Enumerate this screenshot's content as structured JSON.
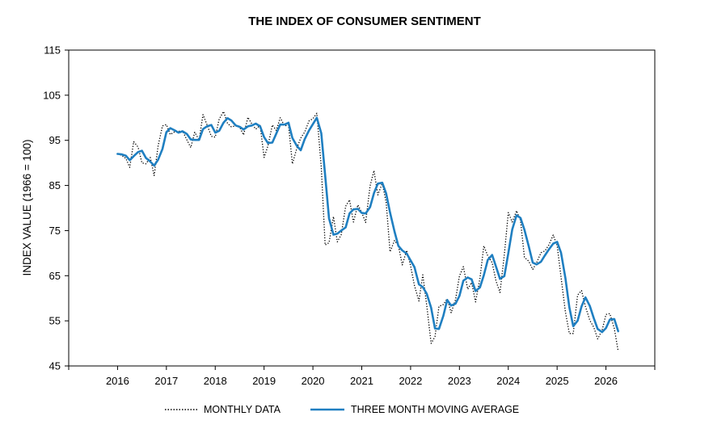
{
  "chart_data": {
    "type": "line",
    "title": "THE INDEX OF CONSUMER SENTIMENT",
    "ylabel": "INDEX VALUE (1966 = 100)",
    "xlabel": "",
    "ylim": [
      45,
      115
    ],
    "xlim": [
      2015.0,
      2027.0
    ],
    "y_ticks": [
      45,
      55,
      65,
      75,
      85,
      95,
      105,
      115
    ],
    "x_ticks": [
      2016,
      2017,
      2018,
      2019,
      2020,
      2021,
      2022,
      2023,
      2024,
      2025,
      2026
    ],
    "x_tick_labels": [
      "2016",
      "2017",
      "2018",
      "2019",
      "2020",
      "2021",
      "2022",
      "2023",
      "2024",
      "2025",
      "2026"
    ],
    "grid": false,
    "legend": "bottom",
    "series": [
      {
        "name": "MONTHLY DATA",
        "style": "dotted",
        "color": "#000000",
        "x": [
          2016.0,
          2016.08,
          2016.17,
          2016.25,
          2016.33,
          2016.42,
          2016.5,
          2016.58,
          2016.67,
          2016.75,
          2016.83,
          2016.92,
          2017.0,
          2017.08,
          2017.17,
          2017.25,
          2017.33,
          2017.42,
          2017.5,
          2017.58,
          2017.67,
          2017.75,
          2017.83,
          2017.92,
          2018.0,
          2018.08,
          2018.17,
          2018.25,
          2018.33,
          2018.42,
          2018.5,
          2018.58,
          2018.67,
          2018.75,
          2018.83,
          2018.92,
          2019.0,
          2019.08,
          2019.17,
          2019.25,
          2019.33,
          2019.42,
          2019.5,
          2019.58,
          2019.67,
          2019.75,
          2019.83,
          2019.92,
          2020.0,
          2020.08,
          2020.17,
          2020.25,
          2020.33,
          2020.42,
          2020.5,
          2020.58,
          2020.67,
          2020.75,
          2020.83,
          2020.92,
          2021.0,
          2021.08,
          2021.17,
          2021.25,
          2021.33,
          2021.42,
          2021.5,
          2021.58,
          2021.67,
          2021.75,
          2021.83,
          2021.92,
          2022.0,
          2022.08,
          2022.17,
          2022.25,
          2022.33,
          2022.42,
          2022.5,
          2022.58,
          2022.67,
          2022.75,
          2022.83,
          2022.92,
          2023.0,
          2023.08,
          2023.17,
          2023.25,
          2023.33,
          2023.42,
          2023.5,
          2023.58,
          2023.67,
          2023.75,
          2023.83,
          2023.92,
          2024.0,
          2024.08,
          2024.17,
          2024.25,
          2024.33,
          2024.42,
          2024.5,
          2024.58,
          2024.67,
          2024.75,
          2024.83,
          2024.92,
          2025.0,
          2025.08,
          2025.17,
          2025.25,
          2025.33,
          2025.42,
          2025.5,
          2025.58,
          2025.67,
          2025.75,
          2025.83,
          2025.92,
          2026.0,
          2026.08,
          2026.17,
          2026.25
        ],
        "values": [
          92.0,
          91.7,
          91.0,
          89.0,
          94.7,
          93.5,
          90.0,
          89.8,
          91.2,
          87.2,
          93.8,
          98.2,
          98.5,
          96.3,
          96.9,
          97.0,
          97.1,
          95.1,
          93.4,
          96.8,
          95.1,
          100.7,
          98.5,
          95.9,
          95.7,
          99.7,
          101.4,
          98.8,
          98.0,
          98.2,
          97.9,
          96.2,
          100.1,
          98.6,
          97.5,
          98.3,
          91.2,
          93.8,
          98.4,
          97.2,
          100.0,
          98.2,
          98.4,
          89.8,
          93.2,
          95.5,
          96.8,
          99.3,
          99.8,
          101.0,
          89.1,
          71.8,
          72.3,
          78.1,
          72.5,
          74.1,
          80.4,
          81.8,
          76.9,
          80.7,
          79.0,
          76.8,
          84.9,
          88.3,
          82.9,
          85.5,
          81.2,
          70.3,
          72.8,
          71.7,
          67.4,
          70.6,
          67.2,
          62.8,
          59.4,
          65.2,
          58.4,
          50.0,
          51.5,
          58.2,
          58.6,
          59.9,
          56.8,
          59.7,
          64.9,
          67.0,
          62.0,
          63.5,
          59.2,
          64.4,
          71.6,
          69.4,
          67.9,
          63.8,
          61.3,
          69.7,
          79.0,
          76.9,
          79.4,
          77.2,
          69.1,
          68.2,
          66.4,
          67.9,
          70.1,
          70.5,
          71.8,
          74.0,
          71.7,
          64.7,
          57.0,
          52.2,
          52.2,
          60.7,
          61.7,
          58.2,
          55.1,
          53.6,
          51.0,
          52.9,
          56.4,
          56.6,
          53.3,
          48.3
        ]
      },
      {
        "name": "THREE MONTH MOVING AVERAGE",
        "style": "solid",
        "color": "#1f7fc1",
        "x": [
          2016.0,
          2016.08,
          2016.17,
          2016.25,
          2016.33,
          2016.42,
          2016.5,
          2016.58,
          2016.67,
          2016.75,
          2016.83,
          2016.92,
          2017.0,
          2017.08,
          2017.17,
          2017.25,
          2017.33,
          2017.42,
          2017.5,
          2017.58,
          2017.67,
          2017.75,
          2017.83,
          2017.92,
          2018.0,
          2018.08,
          2018.17,
          2018.25,
          2018.33,
          2018.42,
          2018.5,
          2018.58,
          2018.67,
          2018.75,
          2018.83,
          2018.92,
          2019.0,
          2019.08,
          2019.17,
          2019.25,
          2019.33,
          2019.42,
          2019.5,
          2019.58,
          2019.67,
          2019.75,
          2019.83,
          2019.92,
          2020.0,
          2020.08,
          2020.17,
          2020.25,
          2020.33,
          2020.42,
          2020.5,
          2020.58,
          2020.67,
          2020.75,
          2020.83,
          2020.92,
          2021.0,
          2021.08,
          2021.17,
          2021.25,
          2021.33,
          2021.42,
          2021.5,
          2021.58,
          2021.67,
          2021.75,
          2021.83,
          2021.92,
          2022.0,
          2022.08,
          2022.17,
          2022.25,
          2022.33,
          2022.42,
          2022.5,
          2022.58,
          2022.67,
          2022.75,
          2022.83,
          2022.92,
          2023.0,
          2023.08,
          2023.17,
          2023.25,
          2023.33,
          2023.42,
          2023.5,
          2023.58,
          2023.67,
          2023.75,
          2023.83,
          2023.92,
          2024.0,
          2024.08,
          2024.17,
          2024.25,
          2024.33,
          2024.42,
          2024.5,
          2024.58,
          2024.67,
          2024.75,
          2024.83,
          2024.92,
          2025.0,
          2025.08,
          2025.17,
          2025.25,
          2025.33,
          2025.42,
          2025.5,
          2025.58,
          2025.67,
          2025.75,
          2025.83,
          2025.92,
          2026.0,
          2026.08,
          2026.17,
          2026.25
        ],
        "values": [
          92.0,
          91.9,
          91.6,
          90.6,
          91.5,
          92.4,
          92.7,
          91.1,
          90.3,
          89.4,
          90.7,
          93.1,
          96.8,
          97.7,
          97.2,
          96.7,
          97.0,
          96.4,
          95.2,
          95.1,
          95.1,
          97.5,
          98.1,
          98.4,
          96.7,
          97.1,
          98.9,
          99.9,
          99.4,
          98.3,
          98.0,
          97.4,
          98.1,
          98.3,
          98.7,
          98.1,
          95.7,
          94.4,
          94.5,
          96.5,
          98.5,
          98.5,
          98.9,
          95.5,
          93.8,
          92.8,
          95.2,
          97.2,
          98.6,
          100.0,
          96.6,
          87.3,
          77.7,
          74.1,
          74.3,
          75.0,
          75.7,
          78.8,
          79.7,
          79.8,
          78.9,
          78.8,
          80.2,
          83.3,
          85.4,
          85.6,
          83.2,
          79.0,
          74.8,
          71.6,
          70.6,
          69.9,
          68.4,
          66.9,
          63.1,
          62.5,
          61.0,
          57.9,
          53.3,
          53.2,
          56.1,
          59.6,
          58.4,
          58.8,
          60.5,
          63.9,
          64.6,
          64.2,
          61.6,
          62.4,
          65.1,
          68.5,
          69.6,
          67.0,
          64.3,
          64.9,
          70.0,
          75.2,
          78.4,
          77.8,
          75.2,
          71.5,
          67.9,
          67.5,
          68.1,
          69.5,
          70.8,
          72.1,
          72.5,
          70.1,
          64.5,
          58.0,
          53.8,
          55.0,
          58.2,
          60.2,
          58.3,
          55.6,
          53.2,
          52.5,
          53.4,
          55.3,
          55.4,
          52.7
        ]
      }
    ]
  }
}
